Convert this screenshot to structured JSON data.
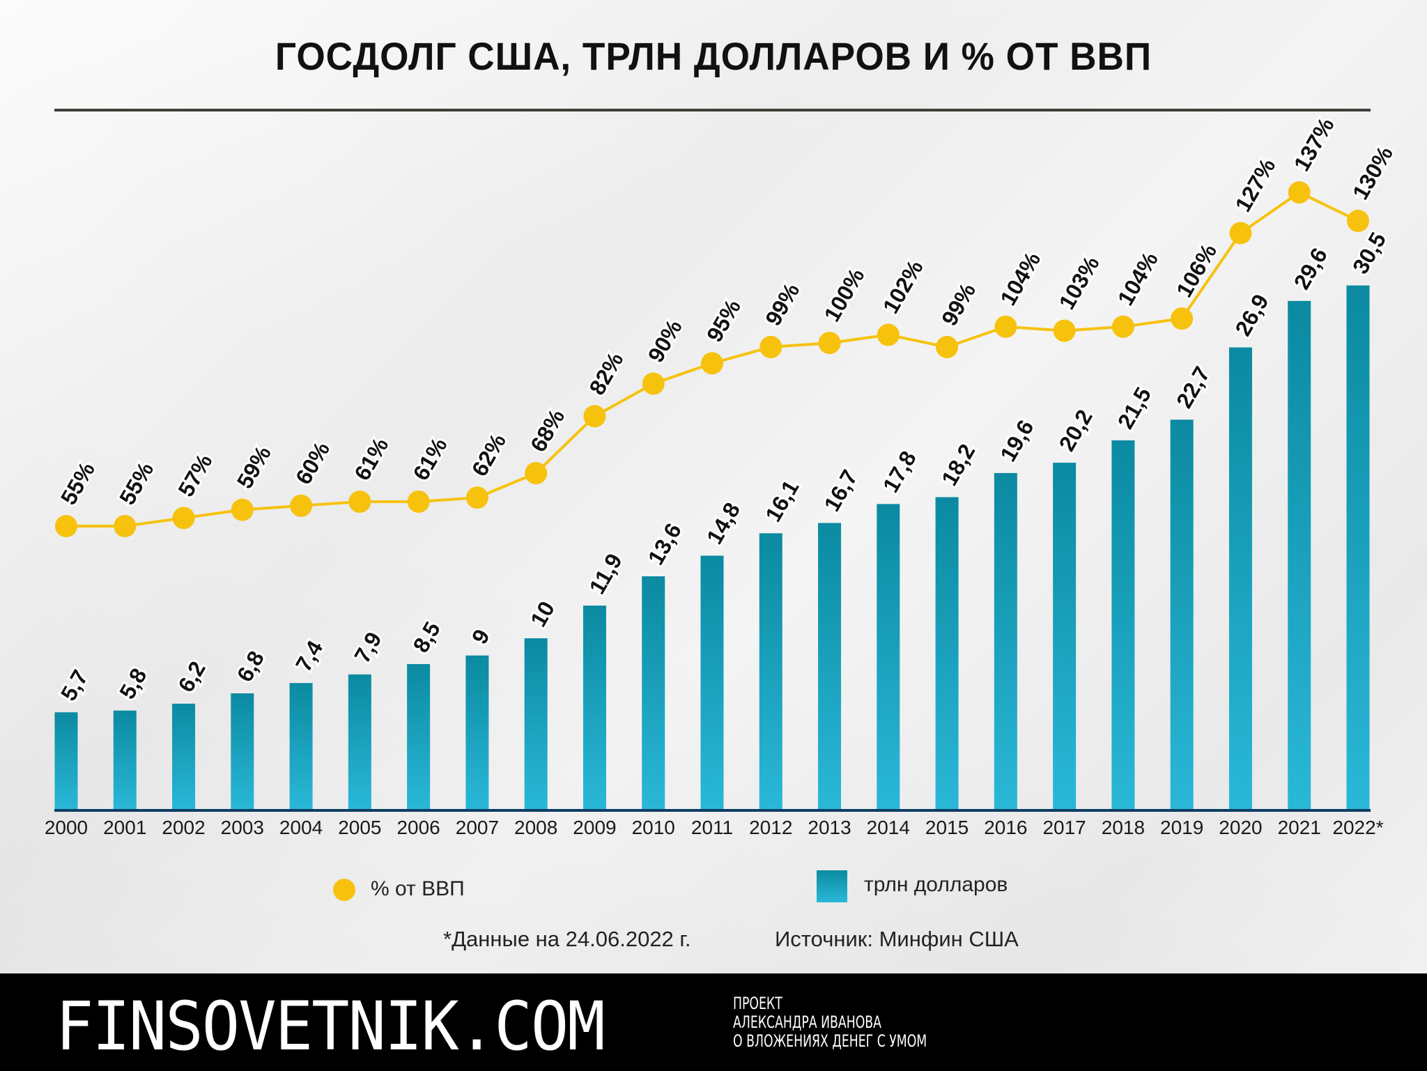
{
  "title": "ГОСДОЛГ США, ТРЛН ДОЛЛАРОВ И % ОТ ВВП",
  "colors": {
    "line": "#f6c20e",
    "bar_top": "#0b8aa1",
    "bar_bottom": "#2ab8d8",
    "axis": "#0d3d66",
    "footer_bg": "#000000"
  },
  "chart_data": {
    "type": "bar+line",
    "title": "ГОСДОЛГ США, ТРЛН ДОЛЛАРОВ И % ОТ ВВП",
    "categories": [
      "2000",
      "2001",
      "2002",
      "2003",
      "2004",
      "2005",
      "2006",
      "2007",
      "2008",
      "2009",
      "2010",
      "2011",
      "2012",
      "2013",
      "2014",
      "2015",
      "2016",
      "2017",
      "2018",
      "2019",
      "2020",
      "2021",
      "2022*"
    ],
    "series": [
      {
        "name": "трлн долларов",
        "type": "bar",
        "values": [
          5.7,
          5.8,
          6.2,
          6.8,
          7.4,
          7.9,
          8.5,
          9,
          10,
          11.9,
          13.6,
          14.8,
          16.1,
          16.7,
          17.8,
          18.2,
          19.6,
          20.2,
          21.5,
          22.7,
          26.9,
          29.6,
          30.5
        ],
        "labels": [
          "5,7",
          "5,8",
          "6,2",
          "6,8",
          "7,4",
          "7,9",
          "8,5",
          "9",
          "10",
          "11,9",
          "13,6",
          "14,8",
          "16,1",
          "16,7",
          "17,8",
          "18,2",
          "19,6",
          "20,2",
          "21,5",
          "22,7",
          "26,9",
          "29,6",
          "30,5"
        ]
      },
      {
        "name": "% от ВВП",
        "type": "line",
        "values": [
          55,
          55,
          57,
          59,
          60,
          61,
          61,
          62,
          68,
          82,
          90,
          95,
          99,
          100,
          102,
          99,
          104,
          103,
          104,
          106,
          127,
          137,
          130
        ],
        "labels": [
          "55%",
          "55%",
          "57%",
          "59%",
          "60%",
          "61%",
          "61%",
          "62%",
          "68%",
          "82%",
          "90%",
          "95%",
          "99%",
          "100%",
          "102%",
          "99%",
          "104%",
          "103%",
          "104%",
          "106%",
          "127%",
          "137%",
          "130%"
        ]
      }
    ],
    "xlabel": "",
    "ylabel": "",
    "legend_position": "bottom",
    "grid": false
  },
  "legend": {
    "line_label": "% от ВВП",
    "bar_label": "трлн долларов"
  },
  "notes": {
    "footnote": "*Данные на 24.06.2022 г.",
    "source": "Источник: Минфин США"
  },
  "footer": {
    "brand": "FINSOVETNIK.COM",
    "tagline": [
      "ПРОЕКТ",
      "АЛЕКСАНДРА ИВАНОВА",
      "О ВЛОЖЕНИЯХ ДЕНЕГ С УМОМ"
    ]
  }
}
